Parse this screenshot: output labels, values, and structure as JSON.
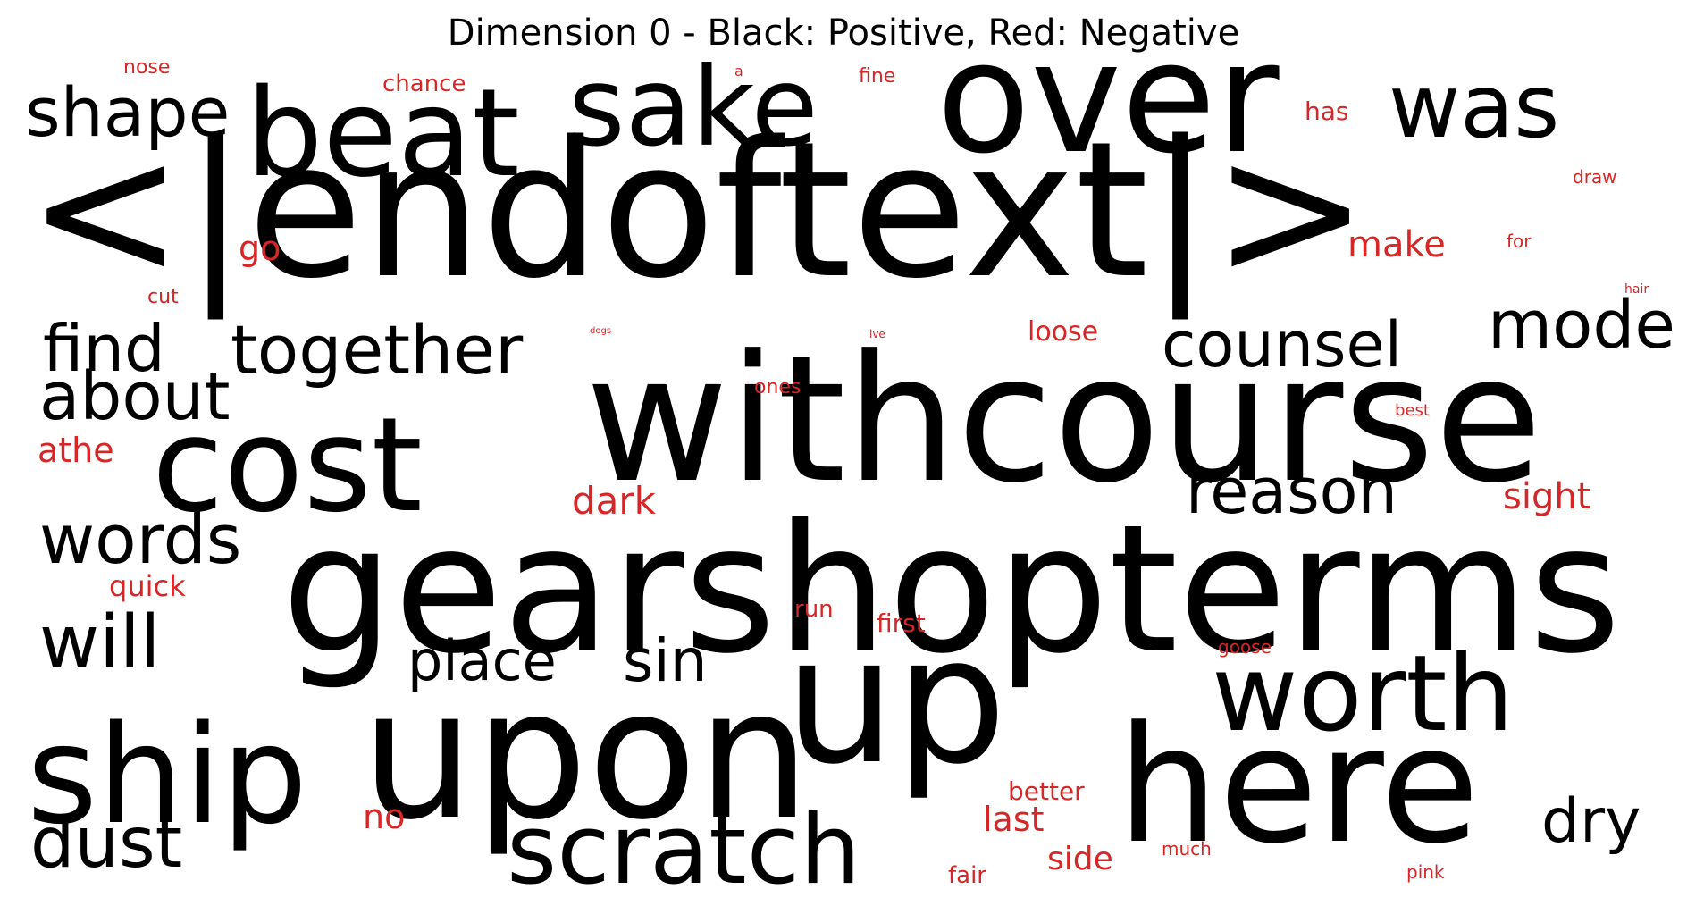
{
  "title": "Dimension 0 - Black: Positive, Red: Negative",
  "colors": {
    "positive": "#000000",
    "negative": "#d62728"
  },
  "words": [
    {
      "text": "<|endoftext|>",
      "polarity": "positive"
    },
    {
      "text": "withcourse",
      "polarity": "positive"
    },
    {
      "text": "gearshopterms",
      "polarity": "positive"
    },
    {
      "text": "over",
      "polarity": "positive"
    },
    {
      "text": "up",
      "polarity": "positive"
    },
    {
      "text": "upon",
      "polarity": "positive"
    },
    {
      "text": "here",
      "polarity": "positive"
    },
    {
      "text": "cost",
      "polarity": "positive"
    },
    {
      "text": "beat",
      "polarity": "positive"
    },
    {
      "text": "sake",
      "polarity": "positive"
    },
    {
      "text": "was",
      "polarity": "positive"
    },
    {
      "text": "ship",
      "polarity": "positive"
    },
    {
      "text": "worth",
      "polarity": "positive"
    },
    {
      "text": "scratch",
      "polarity": "positive"
    },
    {
      "text": "shape",
      "polarity": "positive"
    },
    {
      "text": "together",
      "polarity": "positive"
    },
    {
      "text": "find",
      "polarity": "positive"
    },
    {
      "text": "about",
      "polarity": "positive"
    },
    {
      "text": "counsel",
      "polarity": "positive"
    },
    {
      "text": "mode",
      "polarity": "positive"
    },
    {
      "text": "reason",
      "polarity": "positive"
    },
    {
      "text": "words",
      "polarity": "positive"
    },
    {
      "text": "will",
      "polarity": "positive"
    },
    {
      "text": "place",
      "polarity": "positive"
    },
    {
      "text": "sin",
      "polarity": "positive"
    },
    {
      "text": "dust",
      "polarity": "positive"
    },
    {
      "text": "dry",
      "polarity": "positive"
    },
    {
      "text": "nose",
      "polarity": "negative"
    },
    {
      "text": "chance",
      "polarity": "negative"
    },
    {
      "text": "a",
      "polarity": "negative"
    },
    {
      "text": "fine",
      "polarity": "negative"
    },
    {
      "text": "has",
      "polarity": "negative"
    },
    {
      "text": "draw",
      "polarity": "negative"
    },
    {
      "text": "go",
      "polarity": "negative"
    },
    {
      "text": "make",
      "polarity": "negative"
    },
    {
      "text": "for",
      "polarity": "negative"
    },
    {
      "text": "cut",
      "polarity": "negative"
    },
    {
      "text": "hair",
      "polarity": "negative"
    },
    {
      "text": "dogs",
      "polarity": "negative"
    },
    {
      "text": "ive",
      "polarity": "negative"
    },
    {
      "text": "loose",
      "polarity": "negative"
    },
    {
      "text": "ones",
      "polarity": "negative"
    },
    {
      "text": "best",
      "polarity": "negative"
    },
    {
      "text": "athe",
      "polarity": "negative"
    },
    {
      "text": "dark",
      "polarity": "negative"
    },
    {
      "text": "sight",
      "polarity": "negative"
    },
    {
      "text": "quick",
      "polarity": "negative"
    },
    {
      "text": "run",
      "polarity": "negative"
    },
    {
      "text": "first",
      "polarity": "negative"
    },
    {
      "text": "goose",
      "polarity": "negative"
    },
    {
      "text": "better",
      "polarity": "negative"
    },
    {
      "text": "no",
      "polarity": "negative"
    },
    {
      "text": "last",
      "polarity": "negative"
    },
    {
      "text": "much",
      "polarity": "negative"
    },
    {
      "text": "side",
      "polarity": "negative"
    },
    {
      "text": "fair",
      "polarity": "negative"
    },
    {
      "text": "pink",
      "polarity": "negative"
    }
  ]
}
